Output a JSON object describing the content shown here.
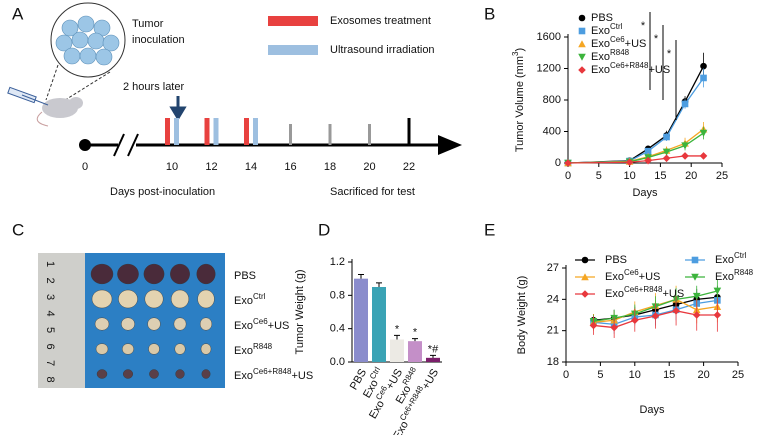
{
  "panel_labels": [
    "A",
    "B",
    "C",
    "D",
    "E"
  ],
  "timeline": {
    "inoculation": [
      "Tumor",
      "inoculation"
    ],
    "legend": [
      {
        "name": "Exosomes treatment",
        "color": "#e8413f"
      },
      {
        "name": "Ultrasound irradiation",
        "color": "#9dbfe0"
      }
    ],
    "note": "2 hours later",
    "days": [
      0,
      10,
      12,
      14,
      16,
      18,
      20,
      22
    ],
    "treatment_days": [
      10,
      12,
      14
    ],
    "xlabel": "Days post-inoculation",
    "end_label": "Sacrificed for test"
  },
  "photo": {
    "ruler": [
      1,
      2,
      3,
      4,
      5,
      6,
      7,
      8
    ],
    "groups": [
      [
        "PBS"
      ],
      [
        "Exo",
        "Ctrl"
      ],
      [
        "Exo",
        "Ce6",
        "+US"
      ],
      [
        "Exo",
        "R848"
      ],
      [
        "Exo",
        "Ce6+R848",
        "+US"
      ]
    ]
  },
  "chart_data": [
    {
      "type": "line",
      "xlabel": "Days",
      "ylabel": [
        "Tumor Volume (mm",
        "3",
        ")"
      ],
      "x": [
        0,
        10,
        13,
        16,
        19,
        22
      ],
      "xlim": [
        0,
        25
      ],
      "xticks": [
        0,
        5,
        10,
        15,
        20,
        25
      ],
      "ylim": [
        0,
        1600
      ],
      "yticks": [
        0,
        400,
        800,
        1200,
        1600
      ],
      "legend": "upper left",
      "significance": [
        "*",
        "*",
        "*"
      ],
      "series": [
        {
          "name": [
            "PBS"
          ],
          "color": "#000000",
          "marker": "circle",
          "values": [
            0,
            30,
            180,
            350,
            780,
            1230
          ],
          "errors": [
            0,
            10,
            40,
            60,
            70,
            170
          ]
        },
        {
          "name": [
            "Exo",
            "Ctrl"
          ],
          "color": "#4d9de0",
          "marker": "square",
          "values": [
            0,
            25,
            150,
            330,
            750,
            1080
          ],
          "errors": [
            0,
            10,
            40,
            50,
            60,
            120
          ]
        },
        {
          "name": [
            "Exo",
            "Ce6",
            "+US"
          ],
          "color": "#f5a623",
          "marker": "triangle",
          "values": [
            0,
            20,
            80,
            160,
            250,
            430
          ],
          "errors": [
            0,
            8,
            30,
            50,
            70,
            90
          ]
        },
        {
          "name": [
            "Exo",
            "R848"
          ],
          "color": "#3cb43c",
          "marker": "triangle-down",
          "values": [
            0,
            15,
            70,
            140,
            220,
            380
          ],
          "errors": [
            0,
            8,
            25,
            40,
            60,
            80
          ]
        },
        {
          "name": [
            "Exo",
            "Ce6+R848",
            "+US"
          ],
          "color": "#e8383d",
          "marker": "diamond",
          "values": [
            0,
            10,
            30,
            60,
            90,
            90
          ],
          "errors": [
            0,
            5,
            10,
            15,
            20,
            15
          ]
        }
      ]
    },
    {
      "type": "bar",
      "ylabel": [
        "Tumor Weight (g)"
      ],
      "categories": [
        [
          "PBS"
        ],
        [
          "Exo",
          "Ctrl"
        ],
        [
          "Exo",
          "Ce6",
          "+US"
        ],
        [
          "Exo",
          "R848"
        ],
        [
          "Exo",
          "Ce6+R848",
          "+US"
        ]
      ],
      "values": [
        1.0,
        0.9,
        0.27,
        0.25,
        0.05
      ],
      "errors": [
        0.05,
        0.05,
        0.05,
        0.03,
        0.03
      ],
      "colors": [
        "#8a8ccc",
        "#3aa3b5",
        "#eceae4",
        "#c48fc8",
        "#7b1f6a"
      ],
      "significance": [
        null,
        null,
        "*",
        "*",
        "*#"
      ],
      "ylim": [
        0,
        1.2
      ],
      "yticks": [
        {
          "value": 0,
          "label": "0.0"
        },
        0.4,
        0.8,
        1.2
      ]
    },
    {
      "type": "line",
      "xlabel": "Days",
      "ylabel": [
        "Body Weight (g)"
      ],
      "x": [
        4,
        7,
        10,
        13,
        16,
        19,
        22
      ],
      "xlim": [
        0,
        25
      ],
      "xticks": [
        0,
        5,
        10,
        15,
        20,
        25
      ],
      "ylim": [
        18,
        27
      ],
      "yticks": [
        18,
        21,
        24,
        27
      ],
      "legend": "upper",
      "series": [
        {
          "name": [
            "PBS"
          ],
          "color": "#000000",
          "marker": "circle",
          "values": [
            22.0,
            22.2,
            22.5,
            23.0,
            23.5,
            24.0,
            24.2
          ],
          "errors": [
            0.6,
            0.8,
            0.8,
            0.9,
            1.0,
            1.0,
            1.1
          ]
        },
        {
          "name": [
            "Exo",
            "Ctrl"
          ],
          "color": "#4d9de0",
          "marker": "square",
          "values": [
            21.8,
            21.6,
            22.3,
            22.5,
            23.0,
            23.6,
            23.9
          ],
          "errors": [
            0.7,
            0.9,
            0.8,
            1.0,
            1.0,
            1.1,
            1.2
          ]
        },
        {
          "name": [
            "Exo",
            "Ce6",
            "+US"
          ],
          "color": "#f5a623",
          "marker": "triangle",
          "values": [
            21.8,
            22.0,
            22.8,
            23.4,
            24.0,
            23.0,
            23.3
          ],
          "errors": [
            0.8,
            0.9,
            1.0,
            1.2,
            1.3,
            1.3,
            1.5
          ]
        },
        {
          "name": [
            "Exo",
            "R848"
          ],
          "color": "#3cb43c",
          "marker": "triangle-down",
          "values": [
            21.9,
            22.2,
            22.6,
            23.3,
            24.0,
            24.3,
            24.8
          ],
          "errors": [
            0.6,
            0.8,
            0.9,
            1.0,
            1.1,
            1.0,
            1.1
          ]
        },
        {
          "name": [
            "Exo",
            "Ce6+R848",
            "+US"
          ],
          "color": "#e8383d",
          "marker": "diamond",
          "values": [
            21.5,
            21.3,
            22.0,
            22.4,
            22.9,
            22.5,
            22.5
          ],
          "errors": [
            0.9,
            1.0,
            1.1,
            1.2,
            1.4,
            1.5,
            1.6
          ]
        }
      ]
    }
  ]
}
